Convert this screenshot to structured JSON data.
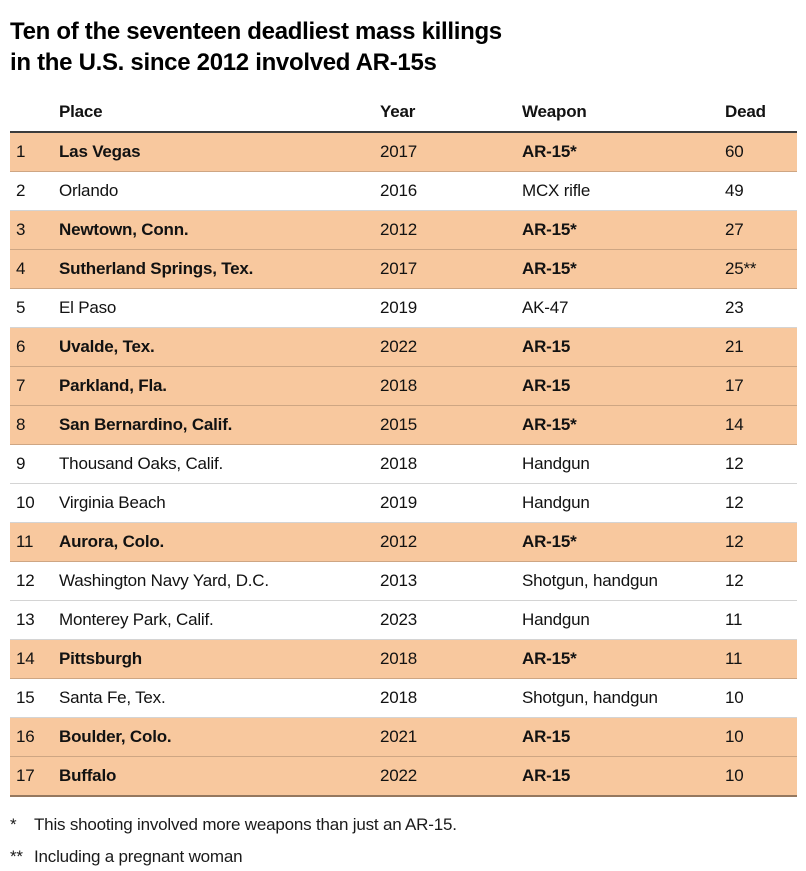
{
  "title": {
    "line1": "Ten of the seventeen deadliest mass killings",
    "line2": "in the U.S. since 2012 involved AR-15s"
  },
  "chart_data": {
    "type": "table",
    "title": "Ten of the seventeen deadliest mass killings in the U.S. since 2012 involved AR-15s",
    "headers": [
      "Place",
      "Year",
      "Weapon",
      "Dead"
    ],
    "rows": [
      {
        "rank": "1",
        "place": "Las Vegas",
        "year": "2017",
        "weapon": "AR-15*",
        "dead": "60",
        "highlight": true
      },
      {
        "rank": "2",
        "place": "Orlando",
        "year": "2016",
        "weapon": "MCX rifle",
        "dead": "49",
        "highlight": false
      },
      {
        "rank": "3",
        "place": "Newtown, Conn.",
        "year": "2012",
        "weapon": "AR-15*",
        "dead": "27",
        "highlight": true
      },
      {
        "rank": "4",
        "place": "Sutherland Springs, Tex.",
        "year": "2017",
        "weapon": "AR-15*",
        "dead": "25**",
        "highlight": true
      },
      {
        "rank": "5",
        "place": "El Paso",
        "year": "2019",
        "weapon": "AK-47",
        "dead": "23",
        "highlight": false
      },
      {
        "rank": "6",
        "place": "Uvalde, Tex.",
        "year": "2022",
        "weapon": "AR-15",
        "dead": "21",
        "highlight": true
      },
      {
        "rank": "7",
        "place": "Parkland, Fla.",
        "year": "2018",
        "weapon": "AR-15",
        "dead": "17",
        "highlight": true
      },
      {
        "rank": "8",
        "place": "San Bernardino, Calif.",
        "year": "2015",
        "weapon": "AR-15*",
        "dead": "14",
        "highlight": true
      },
      {
        "rank": "9",
        "place": "Thousand Oaks, Calif.",
        "year": "2018",
        "weapon": "Handgun",
        "dead": "12",
        "highlight": false
      },
      {
        "rank": "10",
        "place": "Virginia Beach",
        "year": "2019",
        "weapon": "Handgun",
        "dead": "12",
        "highlight": false
      },
      {
        "rank": "11",
        "place": "Aurora, Colo.",
        "year": "2012",
        "weapon": "AR-15*",
        "dead": "12",
        "highlight": true
      },
      {
        "rank": "12",
        "place": "Washington Navy Yard, D.C.",
        "year": "2013",
        "weapon": "Shotgun, handgun",
        "dead": "12",
        "highlight": false
      },
      {
        "rank": "13",
        "place": "Monterey Park, Calif.",
        "year": "2023",
        "weapon": "Handgun",
        "dead": "11",
        "highlight": false
      },
      {
        "rank": "14",
        "place": "Pittsburgh",
        "year": "2018",
        "weapon": "AR-15*",
        "dead": "11",
        "highlight": true
      },
      {
        "rank": "15",
        "place": "Santa Fe, Tex.",
        "year": "2018",
        "weapon": "Shotgun, handgun",
        "dead": "10",
        "highlight": false
      },
      {
        "rank": "16",
        "place": "Boulder, Colo.",
        "year": "2021",
        "weapon": "AR-15",
        "dead": "10",
        "highlight": true
      },
      {
        "rank": "17",
        "place": "Buffalo",
        "year": "2022",
        "weapon": "AR-15",
        "dead": "10",
        "highlight": true
      }
    ],
    "highlight_color": "#F8C89E",
    "layout": {
      "legend": "none",
      "grid": "horizontal-row-separators",
      "highlighted_ranks": [
        1,
        3,
        4,
        6,
        7,
        8,
        11,
        14,
        16,
        17
      ]
    }
  },
  "footnotes": [
    {
      "marker": "*",
      "text": "This shooting involved more weapons than just an AR-15."
    },
    {
      "marker": "**",
      "text": "Including a pregnant woman"
    }
  ]
}
